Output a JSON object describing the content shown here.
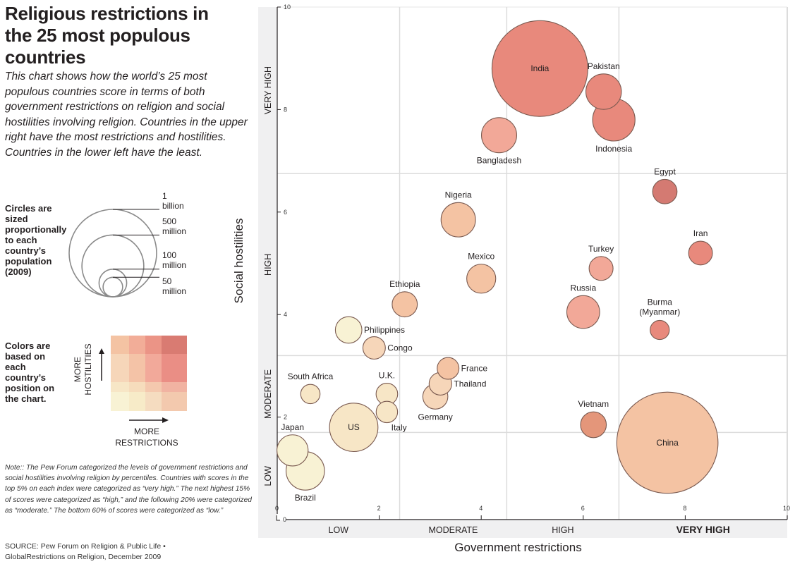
{
  "header": {
    "title": "Religious restrictions in the 25 most populous countries",
    "intro": "This chart shows how the world’s 25 most populous countries score in terms of both government restrictions on religion and social hostilities involving religion. Countries in the upper right have the most restrictions and hostilities. Countries in the lower left have the least."
  },
  "size_legend": {
    "label": "Circles are sized proportionally to each country’s population (2009)",
    "entries": [
      {
        "population_millions": 1000,
        "label_line1": "1",
        "label_line2": "billion"
      },
      {
        "population_millions": 500,
        "label_line1": "500",
        "label_line2": "million"
      },
      {
        "population_millions": 100,
        "label_line1": "100",
        "label_line2": "million"
      },
      {
        "population_millions": 50,
        "label_line1": "50",
        "label_line2": "million"
      }
    ]
  },
  "color_legend": {
    "label": "Colors are based on each country’s position on the chart.",
    "y_label_line1": "MORE",
    "y_label_line2": "HOSTILITIES",
    "x_label_line1": "MORE",
    "x_label_line2": "RESTRICTIONS",
    "grid": [
      [
        "#f4c3a3",
        "#f2ad98",
        "#eb9486",
        "#d97b72"
      ],
      [
        "#f6d6b9",
        "#f4c3a7",
        "#f2a99a",
        "#ea8e85"
      ],
      [
        "#f7e6c6",
        "#f6dcbc",
        "#f4c8ae",
        "#f1b3a2"
      ],
      [
        "#f8f2d4",
        "#f7ebc8",
        "#f5dcc0",
        "#f3c9ae"
      ]
    ]
  },
  "note": "Note:: The Pew Forum categorized the levels of government restrictions and social hostilities involving religion by percentiles. Countries with scores in the top 5% on each index were categorized as “very high.” The next highest 15% of scores were categorized as “high,” and the following 20% were categorized as “moderate.” The bottom 60% of scores were categorized as “low.”",
  "source_line1": "SOURCE: Pew Forum on Religion & Public Life •",
  "source_line2": "GlobalRestrictions on Religion, December 2009",
  "chart_data": {
    "type": "scatter",
    "title": "Religious restrictions in the 25 most populous countries",
    "xlabel": "Government restrictions",
    "ylabel": "Social hostilities",
    "xlim": [
      0,
      10
    ],
    "ylim": [
      0,
      10
    ],
    "x_ticks": [
      0,
      2,
      4,
      6,
      8,
      10
    ],
    "y_ticks": [
      0,
      2,
      4,
      6,
      8,
      10
    ],
    "x_categories": [
      {
        "label": "LOW",
        "from": 0,
        "to": 2.4,
        "bold": false
      },
      {
        "label": "MODERATE",
        "from": 2.4,
        "to": 4.5,
        "bold": false
      },
      {
        "label": "HIGH",
        "from": 4.5,
        "to": 6.7,
        "bold": false
      },
      {
        "label": "VERY HIGH",
        "from": 6.7,
        "to": 10,
        "bold": true
      }
    ],
    "y_categories": [
      {
        "label": "LOW",
        "from": 0,
        "to": 1.7
      },
      {
        "label": "MODERATE",
        "from": 1.7,
        "to": 3.2
      },
      {
        "label": "HIGH",
        "from": 3.2,
        "to": 6.75
      },
      {
        "label": "VERY HIGH",
        "from": 6.75,
        "to": 10
      }
    ],
    "x_gridlines": [
      2.4,
      4.5,
      6.7
    ],
    "y_gridlines": [
      1.7,
      3.2,
      6.75
    ],
    "grid": true,
    "size_encoding": "population (2009)",
    "points": [
      {
        "name": "India",
        "x": 5.15,
        "y": 8.8,
        "population_millions": 1200,
        "color": "#e8897c",
        "label_pos": "center"
      },
      {
        "name": "Pakistan",
        "x": 6.4,
        "y": 8.35,
        "population_millions": 165,
        "color": "#e8897c",
        "label_pos": "top"
      },
      {
        "name": "Indonesia",
        "x": 6.6,
        "y": 7.8,
        "population_millions": 235,
        "color": "#e8897c",
        "label_pos": "bottom"
      },
      {
        "name": "Bangladesh",
        "x": 4.35,
        "y": 7.5,
        "population_millions": 162,
        "color": "#f2a898",
        "label_pos": "bottom"
      },
      {
        "name": "Egypt",
        "x": 7.6,
        "y": 6.4,
        "population_millions": 78,
        "color": "#d47a72",
        "label_pos": "top"
      },
      {
        "name": "Nigeria",
        "x": 3.55,
        "y": 5.85,
        "population_millions": 155,
        "color": "#f4c3a3",
        "label_pos": "top"
      },
      {
        "name": "Iran",
        "x": 8.3,
        "y": 5.2,
        "population_millions": 74,
        "color": "#e8897c",
        "label_pos": "top"
      },
      {
        "name": "Turkey",
        "x": 6.35,
        "y": 4.9,
        "population_millions": 75,
        "color": "#f2a898",
        "label_pos": "top"
      },
      {
        "name": "Mexico",
        "x": 4.0,
        "y": 4.7,
        "population_millions": 110,
        "color": "#f4c3a3",
        "label_pos": "top"
      },
      {
        "name": "Russia",
        "x": 6.0,
        "y": 4.05,
        "population_millions": 141,
        "color": "#f2a898",
        "label_pos": "top"
      },
      {
        "name": "Ethiopia",
        "x": 2.5,
        "y": 4.2,
        "population_millions": 83,
        "color": "#f4c3a3",
        "label_pos": "top"
      },
      {
        "name": "Burma (Myanmar)",
        "x": 7.5,
        "y": 3.7,
        "population_millions": 48,
        "color": "#e8897c",
        "label_pos": "top2",
        "label_line1": "Burma",
        "label_line2": "(Myanmar)"
      },
      {
        "name": "Philippines",
        "x": 1.4,
        "y": 3.7,
        "population_millions": 92,
        "color": "#f8f2d4",
        "label_pos": "right"
      },
      {
        "name": "Congo",
        "x": 1.9,
        "y": 3.35,
        "population_millions": 66,
        "color": "#f6d6b9",
        "label_pos": "right"
      },
      {
        "name": "France",
        "x": 3.35,
        "y": 2.95,
        "population_millions": 62,
        "color": "#f4c3a3",
        "label_pos": "right"
      },
      {
        "name": "Thailand",
        "x": 3.2,
        "y": 2.65,
        "population_millions": 67,
        "color": "#f6d6b9",
        "label_pos": "right"
      },
      {
        "name": "Germany",
        "x": 3.1,
        "y": 2.4,
        "population_millions": 82,
        "color": "#f6d6b9",
        "label_pos": "bottom"
      },
      {
        "name": "South Africa",
        "x": 0.65,
        "y": 2.45,
        "population_millions": 49,
        "color": "#f7e6c6",
        "label_pos": "top"
      },
      {
        "name": "U.K.",
        "x": 2.15,
        "y": 2.45,
        "population_millions": 61,
        "color": "#f7e6c6",
        "label_pos": "top"
      },
      {
        "name": "Italy",
        "x": 2.15,
        "y": 2.1,
        "population_millions": 60,
        "color": "#f7e6c6",
        "label_pos": "bottom-right"
      },
      {
        "name": "US",
        "x": 1.5,
        "y": 1.8,
        "population_millions": 307,
        "color": "#f7e6c6",
        "label_pos": "center"
      },
      {
        "name": "Vietnam",
        "x": 6.2,
        "y": 1.85,
        "population_millions": 87,
        "color": "#e4967a",
        "label_pos": "top"
      },
      {
        "name": "China",
        "x": 7.65,
        "y": 1.5,
        "population_millions": 1340,
        "color": "#f4c3a3",
        "label_pos": "center"
      },
      {
        "name": "Japan",
        "x": 0.3,
        "y": 1.35,
        "population_millions": 127,
        "color": "#f8f2d4",
        "label_pos": "top"
      },
      {
        "name": "Brazil",
        "x": 0.55,
        "y": 0.95,
        "population_millions": 193,
        "color": "#f8f2d4",
        "label_pos": "bottom"
      }
    ]
  }
}
